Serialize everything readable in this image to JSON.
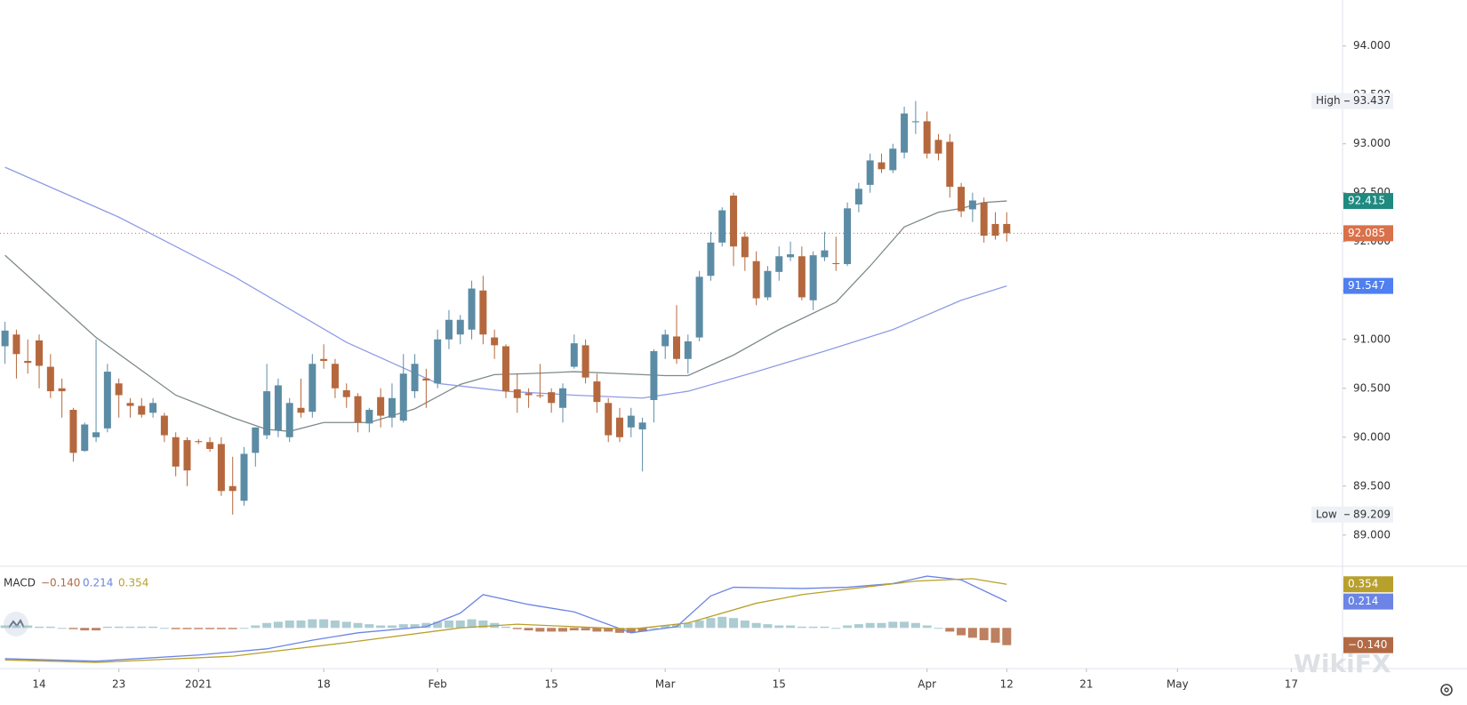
{
  "chart_data": [
    {
      "type": "candlestick",
      "open": [
        90.93,
        91.05,
        90.78,
        90.99,
        90.72,
        90.5,
        90.28,
        89.86,
        90.0,
        90.09,
        90.55,
        90.35,
        90.32,
        90.25,
        90.22,
        90.0,
        89.97,
        89.96,
        89.95,
        89.93,
        89.5,
        89.35,
        89.84,
        90.02,
        90.07,
        90.0,
        90.3,
        90.26,
        90.8,
        90.75,
        90.48,
        90.42,
        90.14,
        90.41,
        90.2,
        90.17,
        90.47,
        90.6,
        90.55,
        91.0,
        91.05,
        91.1,
        91.5,
        91.02,
        90.93,
        90.49,
        90.45,
        90.43,
        90.46,
        90.3,
        90.72,
        90.94,
        90.57,
        90.35,
        90.2,
        90.1,
        90.08,
        90.38,
        90.93,
        91.03,
        90.8,
        91.02,
        91.65,
        91.99,
        92.47,
        92.05,
        91.8,
        91.43,
        91.69,
        91.84,
        91.85,
        91.4,
        91.84,
        91.78,
        91.77,
        92.38,
        92.58,
        92.81,
        92.73,
        92.91,
        93.22,
        93.23,
        93.04,
        93.02,
        92.56,
        92.33,
        92.4,
        92.18,
        92.18
      ],
      "high": [
        91.18,
        91.1,
        91.0,
        91.05,
        90.85,
        90.6,
        90.3,
        90.15,
        91.0,
        90.75,
        90.6,
        90.4,
        90.4,
        90.4,
        90.25,
        90.05,
        90.0,
        89.98,
        90.0,
        90.0,
        89.8,
        89.9,
        90.1,
        90.75,
        90.6,
        90.4,
        90.6,
        90.85,
        90.95,
        90.8,
        90.55,
        90.45,
        90.3,
        90.5,
        90.55,
        90.85,
        90.85,
        90.7,
        91.1,
        91.3,
        91.25,
        91.6,
        91.65,
        91.1,
        90.95,
        90.65,
        90.5,
        90.75,
        90.5,
        90.55,
        91.05,
        91.0,
        90.65,
        90.4,
        90.3,
        90.3,
        90.2,
        90.9,
        91.1,
        91.35,
        91.05,
        91.7,
        92.1,
        92.35,
        92.5,
        92.1,
        91.9,
        91.75,
        91.95,
        92.0,
        91.95,
        91.9,
        92.1,
        92.05,
        92.4,
        92.6,
        92.9,
        92.9,
        93.0,
        93.38,
        93.437,
        93.33,
        93.1,
        93.1,
        92.6,
        92.5,
        92.45,
        92.3,
        92.3
      ],
      "low": [
        90.75,
        90.6,
        90.65,
        90.5,
        90.4,
        90.2,
        89.75,
        89.85,
        89.95,
        90.05,
        90.2,
        90.2,
        90.2,
        90.2,
        89.95,
        89.6,
        89.5,
        89.93,
        89.85,
        89.4,
        89.209,
        89.3,
        89.7,
        89.98,
        90.0,
        89.95,
        90.2,
        90.2,
        90.7,
        90.4,
        90.3,
        90.05,
        90.05,
        90.1,
        90.1,
        90.15,
        90.4,
        90.3,
        90.5,
        90.9,
        90.95,
        91.0,
        90.95,
        90.8,
        90.4,
        90.25,
        90.3,
        90.4,
        90.25,
        90.15,
        90.7,
        90.55,
        90.25,
        89.95,
        89.95,
        90.0,
        89.65,
        90.15,
        90.8,
        90.75,
        90.65,
        90.98,
        91.6,
        91.95,
        91.75,
        91.7,
        91.35,
        91.4,
        91.6,
        91.8,
        91.4,
        91.3,
        91.8,
        91.7,
        91.75,
        92.3,
        92.5,
        92.7,
        92.7,
        92.85,
        93.1,
        92.85,
        92.83,
        92.45,
        92.25,
        92.2,
        91.99,
        92.02,
        92.0
      ],
      "close": [
        91.09,
        90.85,
        90.76,
        90.73,
        90.47,
        90.47,
        89.84,
        90.13,
        90.05,
        90.67,
        90.43,
        90.32,
        90.23,
        90.35,
        90.02,
        89.7,
        89.66,
        89.95,
        89.88,
        89.45,
        89.45,
        89.83,
        90.1,
        90.47,
        90.53,
        90.35,
        90.25,
        90.75,
        90.78,
        90.5,
        90.41,
        90.15,
        90.28,
        90.22,
        90.4,
        90.65,
        90.75,
        90.58,
        91.0,
        91.2,
        91.2,
        91.52,
        91.05,
        90.94,
        90.47,
        90.4,
        90.43,
        90.42,
        90.35,
        90.5,
        90.96,
        90.61,
        90.36,
        90.02,
        90.0,
        90.22,
        90.15,
        90.88,
        91.05,
        90.8,
        90.98,
        91.64,
        91.99,
        92.32,
        91.95,
        91.84,
        91.42,
        91.7,
        91.85,
        91.87,
        91.43,
        91.86,
        91.91,
        91.77,
        92.34,
        92.54,
        92.83,
        92.74,
        92.95,
        93.31,
        93.23,
        92.9,
        92.9,
        92.56,
        92.31,
        92.42,
        92.06,
        92.06,
        92.085
      ],
      "up_color": "#5c8ca5",
      "down_color": "#b5683d",
      "moving_averages": [
        {
          "color": "#7f8a8a",
          "tag_color": "#1f8a80",
          "x": [
            0,
            8,
            15,
            20,
            23,
            25,
            28,
            32,
            36,
            40,
            43,
            46,
            50,
            54,
            58,
            60,
            64,
            68,
            73,
            76,
            79,
            82,
            84,
            86,
            88
          ],
          "values": [
            91.86,
            91.02,
            90.43,
            90.2,
            90.08,
            90.06,
            90.15,
            90.15,
            90.29,
            90.54,
            90.64,
            90.65,
            90.67,
            90.65,
            90.63,
            90.63,
            90.84,
            91.1,
            91.38,
            91.75,
            92.15,
            92.3,
            92.34,
            92.4,
            92.415
          ]
        },
        {
          "color": "#8f9ce6",
          "tag_color": "#4f7ff0",
          "x": [
            0,
            10,
            20,
            30,
            38,
            44,
            50,
            56,
            60,
            66,
            72,
            78,
            84,
            88
          ],
          "values": [
            92.76,
            92.25,
            91.65,
            90.97,
            90.55,
            90.47,
            90.43,
            90.4,
            90.47,
            90.67,
            90.88,
            91.1,
            91.4,
            91.547
          ]
        }
      ],
      "last_price_color": "#d9714a",
      "high_label": "High",
      "low_label": "Low",
      "xlim": [
        -0.44,
        117.5
      ],
      "ylim": [
        88.68,
        94.47
      ],
      "yticks": [
        {
          "value": 89,
          "label": "89.000"
        },
        {
          "value": 89.5,
          "label": "89.500"
        },
        {
          "value": 90,
          "label": "90.000"
        },
        {
          "value": 90.5,
          "label": "90.500"
        },
        {
          "value": 91,
          "label": "91.000"
        },
        {
          "value": 91.5,
          "label": "91.500"
        },
        {
          "value": 92,
          "label": "92.000"
        },
        {
          "value": 92.5,
          "label": "92.500"
        },
        {
          "value": 93,
          "label": "93.000"
        },
        {
          "value": 93.5,
          "label": "93.500"
        },
        {
          "value": 94,
          "label": "94.000"
        }
      ],
      "xticks": [
        {
          "value": 3,
          "label": "14"
        },
        {
          "value": 10,
          "label": "23"
        },
        {
          "value": 17,
          "label": "2021"
        },
        {
          "value": 28,
          "label": "18"
        },
        {
          "value": 38,
          "label": "Feb"
        },
        {
          "value": 48,
          "label": "15"
        },
        {
          "value": 58,
          "label": "Mar"
        },
        {
          "value": 68,
          "label": "15"
        },
        {
          "value": 81,
          "label": "Apr"
        },
        {
          "value": 88,
          "label": "12"
        },
        {
          "value": 95,
          "label": "21"
        },
        {
          "value": 103,
          "label": "May"
        },
        {
          "value": 113,
          "label": "17"
        }
      ],
      "grid": false
    },
    {
      "type": "macd",
      "label": "MACD",
      "histogram": [
        0.02,
        0.02,
        0.02,
        0.01,
        0.01,
        0.0,
        -0.01,
        -0.02,
        -0.02,
        0.01,
        0.01,
        0.01,
        0.01,
        0.01,
        0.0,
        -0.01,
        -0.01,
        -0.01,
        -0.01,
        -0.01,
        -0.01,
        0.0,
        0.02,
        0.04,
        0.05,
        0.06,
        0.06,
        0.07,
        0.07,
        0.06,
        0.05,
        0.04,
        0.03,
        0.02,
        0.02,
        0.03,
        0.03,
        0.04,
        0.05,
        0.06,
        0.06,
        0.07,
        0.06,
        0.04,
        0.01,
        -0.01,
        -0.02,
        -0.03,
        -0.03,
        -0.03,
        -0.02,
        -0.02,
        -0.03,
        -0.03,
        -0.04,
        -0.04,
        -0.03,
        0.0,
        0.02,
        0.03,
        0.04,
        0.06,
        0.08,
        0.09,
        0.08,
        0.06,
        0.04,
        0.03,
        0.02,
        0.02,
        0.01,
        0.01,
        0.01,
        0.0,
        0.02,
        0.03,
        0.04,
        0.04,
        0.05,
        0.05,
        0.04,
        0.02,
        0.0,
        -0.03,
        -0.06,
        -0.08,
        -0.1,
        -0.12,
        -0.14
      ],
      "histogram_last_label": "−0.140",
      "histogram_up_color": "#9cc3c9",
      "histogram_down_color": "#b26a45",
      "macd": {
        "color": "#6b84e6",
        "x": [
          0,
          8,
          17,
          23,
          27,
          31,
          37,
          40,
          42,
          46,
          50,
          55,
          59,
          62,
          64,
          70,
          74,
          78,
          81,
          84,
          88
        ],
        "values": [
          -0.25,
          -0.27,
          -0.22,
          -0.17,
          -0.1,
          -0.04,
          0.01,
          0.12,
          0.27,
          0.19,
          0.13,
          -0.04,
          0.01,
          0.26,
          0.33,
          0.32,
          0.33,
          0.36,
          0.42,
          0.39,
          0.214
        ]
      },
      "signal": {
        "color": "#b8a02c",
        "x": [
          0,
          8,
          20,
          30,
          40,
          45,
          55,
          60,
          66,
          70,
          80,
          85,
          88
        ],
        "values": [
          -0.26,
          -0.28,
          -0.23,
          -0.12,
          0.0,
          0.03,
          -0.01,
          0.04,
          0.2,
          0.27,
          0.38,
          0.4,
          0.354
        ]
      },
      "ylim": [
        -0.33,
        0.5
      ]
    }
  ],
  "watermark": "WikiFX"
}
